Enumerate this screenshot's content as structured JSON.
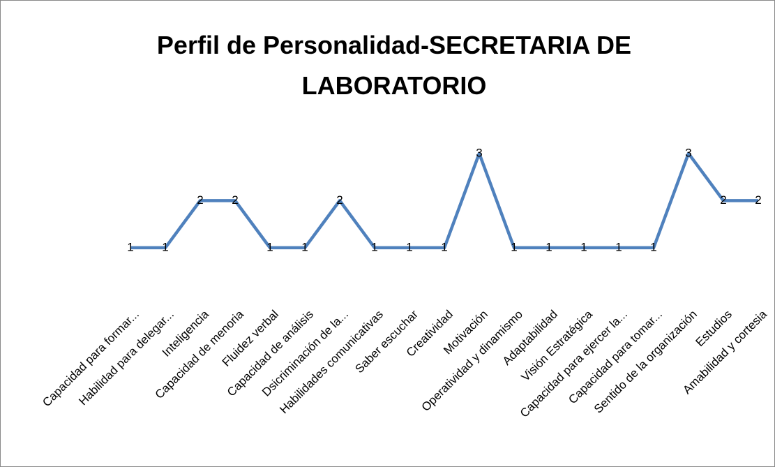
{
  "chart_data": {
    "type": "line",
    "title": "Perfil de Personalidad-SECRETARIA DE LABORATORIO",
    "categories": [
      "Capacidad para formar...",
      "Habilidad para delegar...",
      "Inteligencia",
      "Capacidad de menoria",
      "Fluidez verbal",
      "Capacidad de análisis",
      "Dsicriminación de la...",
      "Habilidades comunicativas",
      "Saber escuchar",
      "Creatividad",
      "Motivación",
      "Operatividad y dinamismo",
      "Adaptabilidad",
      "Visión Estratégica",
      "Capacidad para ejercer la...",
      "Capacidad para tomar...",
      "Sentido de la organización",
      "Estudios",
      "Amabilidad y cortesia"
    ],
    "values": [
      1,
      1,
      2,
      2,
      1,
      1,
      2,
      1,
      1,
      1,
      3,
      1,
      1,
      1,
      1,
      1,
      3,
      2,
      2
    ],
    "color": "#4f81bd",
    "ylim": [
      0,
      3.5
    ]
  }
}
